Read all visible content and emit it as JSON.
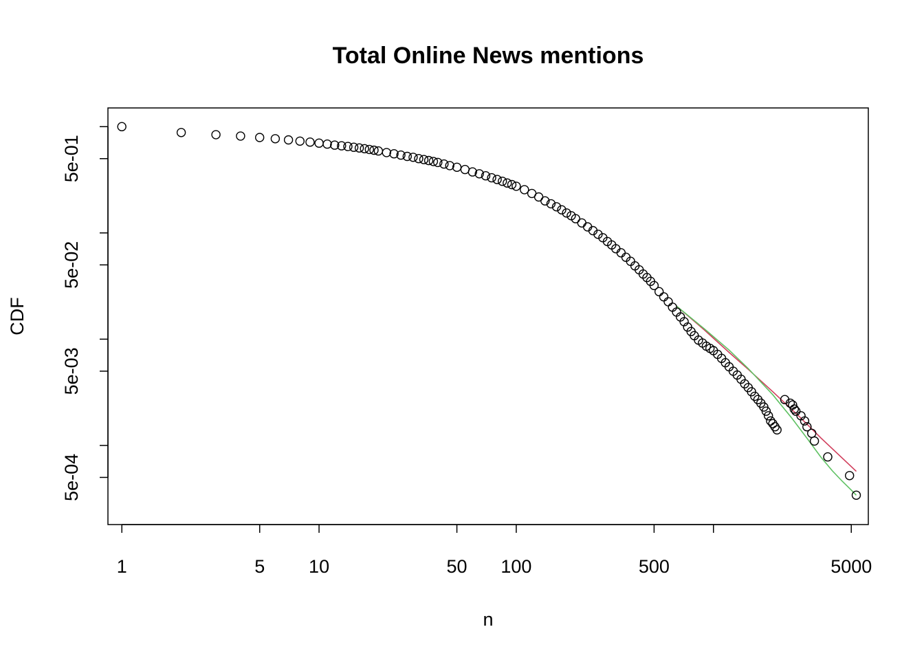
{
  "chart_data": {
    "type": "scatter",
    "title": "Total Online News mentions",
    "xlabel": "n",
    "ylabel": "CDF",
    "x_scale": "log",
    "y_scale": "log",
    "xlim": [
      0.85,
      6100
    ],
    "ylim": [
      0.00018,
      1.5
    ],
    "grid": false,
    "legend": "none",
    "x_ticks": [
      1,
      5,
      10,
      50,
      100,
      500,
      1000,
      5000
    ],
    "x_tick_labels": [
      "1",
      "5",
      "10",
      "50",
      "100",
      "500",
      "",
      "5000"
    ],
    "y_ticks": [
      1,
      0.5,
      0.1,
      0.05,
      0.01,
      0.005,
      0.001,
      0.0005
    ],
    "y_tick_labels": [
      "",
      "5e-01",
      "",
      "5e-02",
      "",
      "5e-03",
      "",
      "5e-04"
    ],
    "series": [
      {
        "kind": "points",
        "marker": "open-circle",
        "color": "#000000",
        "x": [
          1,
          2,
          3,
          4,
          5,
          6,
          7,
          8,
          9,
          10,
          11,
          12,
          13,
          14,
          15,
          16,
          17,
          18,
          19,
          20,
          22,
          24,
          26,
          28,
          30,
          32,
          34,
          36,
          38,
          40,
          43,
          46,
          50,
          55,
          60,
          65,
          70,
          75,
          80,
          85,
          90,
          95,
          100,
          110,
          120,
          130,
          140,
          150,
          160,
          170,
          180,
          190,
          200,
          215,
          230,
          245,
          260,
          275,
          290,
          305,
          320,
          340,
          360,
          380,
          400,
          420,
          440,
          460,
          480,
          500,
          530,
          560,
          590,
          620,
          650,
          680,
          710,
          740,
          770,
          800,
          840,
          880,
          920,
          960,
          1000,
          1050,
          1100,
          1150,
          1200,
          1260,
          1320,
          1380,
          1440,
          1500,
          1560,
          1620,
          1680,
          1740,
          1800,
          1850,
          1900,
          1950,
          2000,
          2050,
          2100,
          2300,
          2450,
          2520,
          2570,
          2620,
          2780,
          2900,
          2980,
          3150,
          3250,
          3800,
          4900,
          5300
        ],
        "y": [
          1.0,
          0.88,
          0.84,
          0.815,
          0.79,
          0.77,
          0.75,
          0.73,
          0.715,
          0.7,
          0.685,
          0.67,
          0.66,
          0.65,
          0.64,
          0.63,
          0.62,
          0.61,
          0.6,
          0.59,
          0.57,
          0.555,
          0.54,
          0.525,
          0.515,
          0.5,
          0.49,
          0.48,
          0.47,
          0.46,
          0.445,
          0.43,
          0.415,
          0.395,
          0.375,
          0.36,
          0.345,
          0.33,
          0.318,
          0.306,
          0.295,
          0.285,
          0.275,
          0.255,
          0.235,
          0.218,
          0.2,
          0.188,
          0.176,
          0.165,
          0.154,
          0.145,
          0.136,
          0.124,
          0.114,
          0.105,
          0.097,
          0.09,
          0.083,
          0.077,
          0.071,
          0.065,
          0.059,
          0.054,
          0.049,
          0.045,
          0.041,
          0.038,
          0.035,
          0.032,
          0.028,
          0.025,
          0.0225,
          0.02,
          0.018,
          0.0162,
          0.0146,
          0.013,
          0.0118,
          0.0108,
          0.0098,
          0.0092,
          0.0086,
          0.0082,
          0.0078,
          0.0072,
          0.0066,
          0.006,
          0.0055,
          0.005,
          0.0046,
          0.0042,
          0.0038,
          0.0035,
          0.0032,
          0.0029,
          0.0027,
          0.0025,
          0.0023,
          0.0021,
          0.0019,
          0.0017,
          0.0016,
          0.0015,
          0.0014,
          0.0027,
          0.0025,
          0.0024,
          0.0022,
          0.0021,
          0.0019,
          0.0017,
          0.0015,
          0.0013,
          0.0011,
          0.00078,
          0.00052,
          0.00034
        ]
      },
      {
        "kind": "line",
        "color": "#d03c5a",
        "x": [
          650,
          900,
          1200,
          1500,
          2000,
          2700,
          3500,
          4500,
          5300
        ],
        "y": [
          0.0205,
          0.0122,
          0.0075,
          0.0052,
          0.0032,
          0.0019,
          0.00118,
          0.00076,
          0.00057
        ]
      },
      {
        "kind": "line",
        "color": "#5ec162",
        "x": [
          650,
          900,
          1200,
          1500,
          2000,
          2500,
          3000,
          3500,
          4000,
          4500,
          5000,
          5300
        ],
        "y": [
          0.0205,
          0.0125,
          0.0079,
          0.0053,
          0.003,
          0.0018,
          0.00115,
          0.00078,
          0.00058,
          0.00046,
          0.00038,
          0.00034
        ]
      }
    ]
  }
}
